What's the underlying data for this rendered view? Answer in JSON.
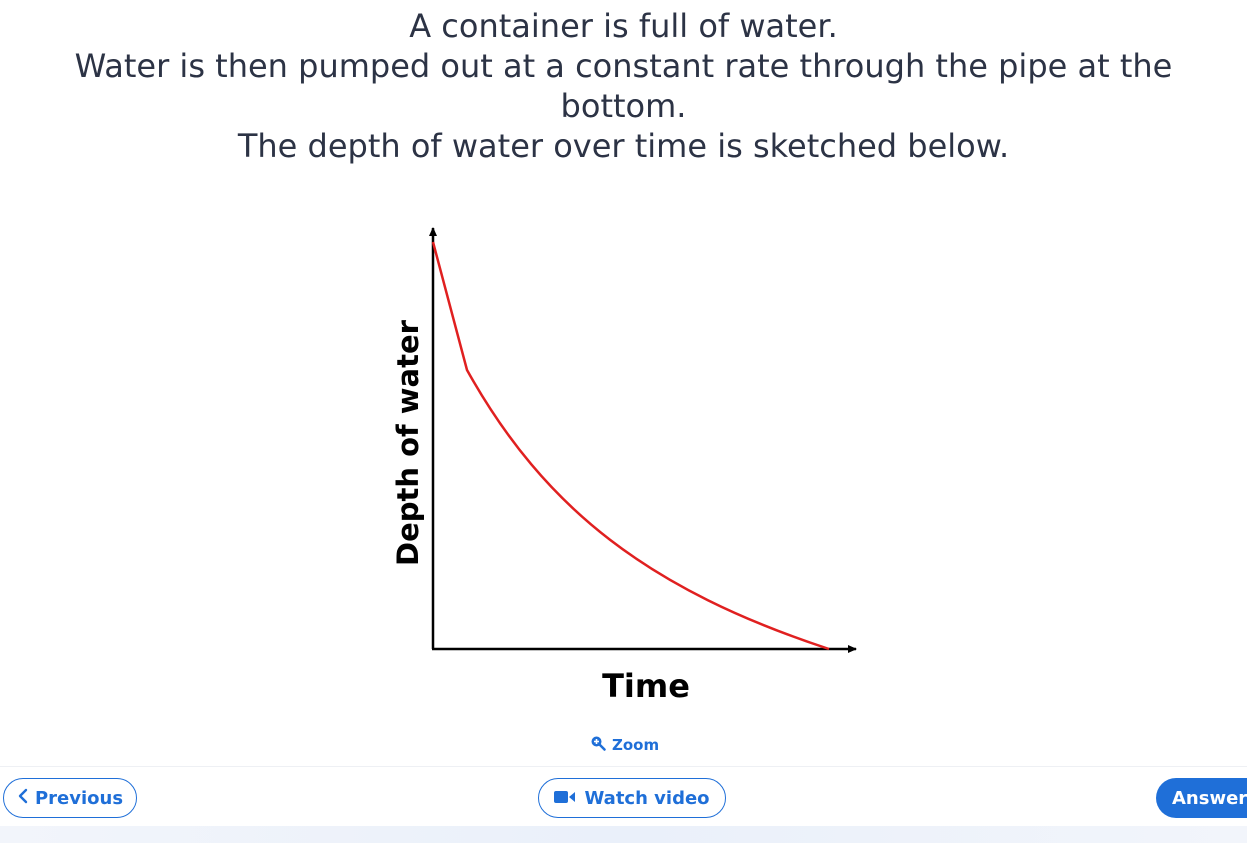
{
  "question": {
    "line1": "A container is full of water.",
    "line2": "Water is then pumped out at a constant rate through the pipe at the bottom.",
    "line3": "The depth of water over time is sketched below."
  },
  "graph": {
    "xlabel": "Time",
    "ylabel": "Depth of water",
    "curve_color": "#e02020",
    "axis_color": "#000000"
  },
  "controls": {
    "zoom_label": "Zoom",
    "previous_label": "Previous",
    "watch_video_label": "Watch video",
    "answer_label": "Answer"
  },
  "colors": {
    "accent": "#1f6fd8",
    "text": "#2c3345"
  },
  "icons": {
    "zoom": "zoom-in-icon",
    "previous": "chevron-left-icon",
    "video": "video-camera-icon"
  }
}
